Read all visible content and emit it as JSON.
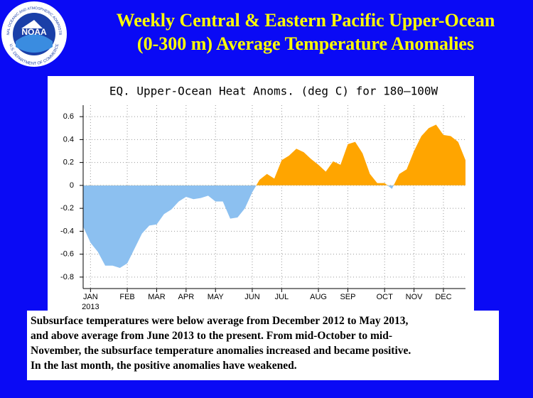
{
  "logo": {
    "text": "NOAA",
    "ring_top": "NATIONAL OCEANIC AND ATMOSPHERIC ADMINISTRATION",
    "ring_bottom": "U.S. DEPARTMENT OF COMMERCE"
  },
  "slide_title": [
    "Weekly Central & Eastern Pacific Upper-Ocean",
    "(0-300 m) Average Temperature Anomalies"
  ],
  "chart_data": {
    "type": "area",
    "title": "EQ. Upper-Ocean Heat Anoms. (deg C) for 180–100W",
    "year_label": "2013",
    "categories": [
      null,
      "JAN",
      null,
      null,
      null,
      null,
      "FEB",
      null,
      null,
      null,
      "MAR",
      null,
      null,
      null,
      "APR",
      null,
      null,
      null,
      "MAY",
      null,
      null,
      null,
      null,
      "JUN",
      null,
      null,
      null,
      "JUL",
      null,
      null,
      null,
      null,
      "AUG",
      null,
      null,
      null,
      "SEP",
      null,
      null,
      null,
      null,
      "OCT",
      null,
      null,
      null,
      "NOV",
      null,
      null,
      null,
      "DEC",
      null,
      null,
      null
    ],
    "values": [
      -0.36,
      -0.5,
      -0.58,
      -0.7,
      -0.7,
      -0.72,
      -0.68,
      -0.55,
      -0.42,
      -0.35,
      -0.34,
      -0.25,
      -0.21,
      -0.14,
      -0.1,
      -0.12,
      -0.11,
      -0.09,
      -0.14,
      -0.14,
      -0.29,
      -0.28,
      -0.2,
      -0.06,
      0.05,
      0.1,
      0.06,
      0.22,
      0.26,
      0.32,
      0.29,
      0.23,
      0.18,
      0.12,
      0.21,
      0.18,
      0.36,
      0.38,
      0.28,
      0.1,
      0.02,
      0.02,
      -0.03,
      0.1,
      0.14,
      0.3,
      0.43,
      0.5,
      0.53,
      0.44,
      0.43,
      0.38,
      0.22
    ],
    "positive_color": "#ffa500",
    "negative_color": "#8cc0f0",
    "ylim": [
      -0.9,
      0.7
    ],
    "yticks": [
      -0.8,
      -0.6,
      -0.4,
      -0.2,
      0,
      0.2,
      0.4,
      0.6
    ],
    "grid": true
  },
  "note": [
    "Subsurface temperatures were below average from December 2012 to May 2013,",
    "and above average from June 2013 to the present. From mid-October to mid-",
    "November, the subsurface temperature anomalies increased and became positive.",
    "In the last month, the positive anomalies have weakened."
  ]
}
